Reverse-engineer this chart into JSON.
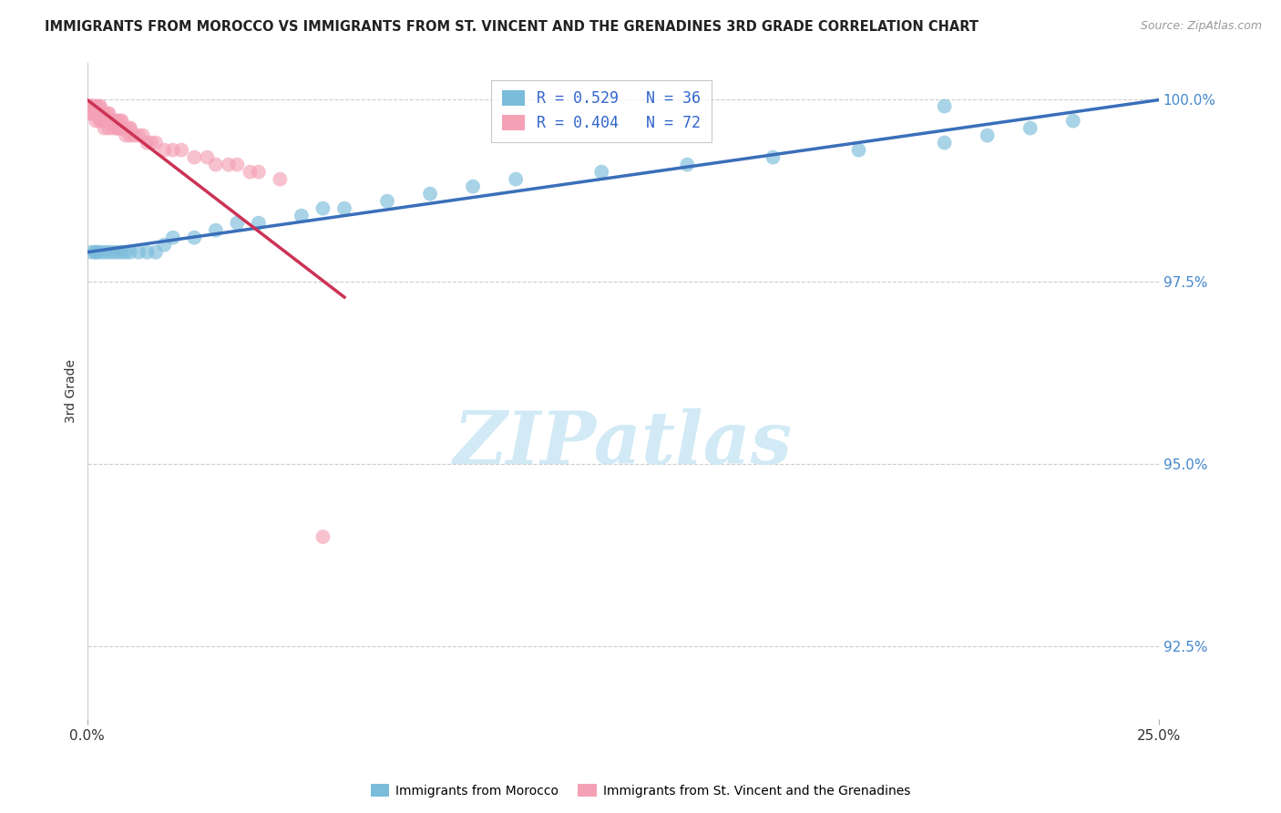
{
  "title": "IMMIGRANTS FROM MOROCCO VS IMMIGRANTS FROM ST. VINCENT AND THE GRENADINES 3RD GRADE CORRELATION CHART",
  "source": "Source: ZipAtlas.com",
  "ylabel": "3rd Grade",
  "xlabel": "",
  "xlim": [
    0.0,
    0.25
  ],
  "ylim": [
    0.915,
    1.005
  ],
  "yticks": [
    0.925,
    0.95,
    0.975,
    1.0
  ],
  "ytick_labels": [
    "92.5%",
    "95.0%",
    "97.5%",
    "100.0%"
  ],
  "xticks": [
    0.0,
    0.25
  ],
  "xtick_labels": [
    "0.0%",
    "25.0%"
  ],
  "legend_r1": "R = 0.529",
  "legend_n1": "N = 36",
  "legend_r2": "R = 0.404",
  "legend_n2": "N = 72",
  "color_morocco": "#7bbcdb",
  "color_stvincent": "#f4a0b5",
  "color_line_morocco": "#3a6fba",
  "color_line_stvincent": "#cc3355",
  "watermark_color": "#cce8f5",
  "morocco_x": [
    0.001,
    0.002,
    0.003,
    0.004,
    0.005,
    0.006,
    0.007,
    0.008,
    0.009,
    0.01,
    0.012,
    0.014,
    0.016,
    0.018,
    0.02,
    0.025,
    0.03,
    0.035,
    0.04,
    0.05,
    0.055,
    0.06,
    0.07,
    0.08,
    0.09,
    0.1,
    0.12,
    0.14,
    0.16,
    0.18,
    0.2,
    0.21,
    0.22,
    0.23,
    0.002,
    0.2
  ],
  "morocco_y": [
    0.979,
    0.979,
    0.979,
    0.979,
    0.979,
    0.979,
    0.979,
    0.979,
    0.979,
    0.979,
    0.979,
    0.979,
    0.979,
    0.98,
    0.981,
    0.981,
    0.982,
    0.983,
    0.983,
    0.984,
    0.985,
    0.985,
    0.986,
    0.987,
    0.988,
    0.989,
    0.99,
    0.991,
    0.992,
    0.993,
    0.994,
    0.995,
    0.996,
    0.997,
    0.979,
    0.999
  ],
  "stvincent_x": [
    0.001,
    0.001,
    0.001,
    0.001,
    0.002,
    0.002,
    0.002,
    0.002,
    0.003,
    0.003,
    0.003,
    0.003,
    0.004,
    0.004,
    0.004,
    0.004,
    0.005,
    0.005,
    0.005,
    0.005,
    0.006,
    0.006,
    0.006,
    0.007,
    0.007,
    0.007,
    0.008,
    0.008,
    0.008,
    0.009,
    0.009,
    0.01,
    0.01,
    0.011,
    0.012,
    0.013,
    0.014,
    0.015,
    0.016,
    0.018,
    0.02,
    0.022,
    0.025,
    0.028,
    0.03,
    0.033,
    0.035,
    0.038,
    0.04,
    0.045,
    0.001,
    0.002,
    0.003,
    0.003,
    0.004,
    0.005,
    0.006,
    0.007,
    0.008,
    0.01,
    0.001,
    0.001,
    0.002,
    0.002,
    0.003,
    0.004,
    0.005,
    0.006,
    0.007,
    0.008,
    0.002,
    0.055
  ],
  "stvincent_y": [
    0.999,
    0.999,
    0.998,
    0.998,
    0.999,
    0.998,
    0.998,
    0.997,
    0.999,
    0.998,
    0.997,
    0.997,
    0.998,
    0.997,
    0.997,
    0.996,
    0.998,
    0.997,
    0.997,
    0.996,
    0.997,
    0.997,
    0.996,
    0.997,
    0.996,
    0.996,
    0.997,
    0.996,
    0.996,
    0.996,
    0.995,
    0.996,
    0.995,
    0.995,
    0.995,
    0.995,
    0.994,
    0.994,
    0.994,
    0.993,
    0.993,
    0.993,
    0.992,
    0.992,
    0.991,
    0.991,
    0.991,
    0.99,
    0.99,
    0.989,
    0.999,
    0.999,
    0.999,
    0.998,
    0.998,
    0.998,
    0.997,
    0.997,
    0.997,
    0.996,
    0.999,
    0.999,
    0.999,
    0.998,
    0.998,
    0.997,
    0.997,
    0.997,
    0.996,
    0.996,
    0.998,
    0.94
  ]
}
